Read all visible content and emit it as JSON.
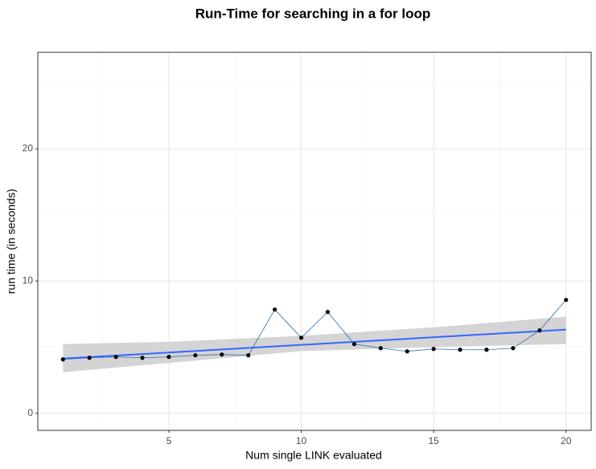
{
  "chart_data": {
    "type": "line",
    "title": "Run-Time for searching in a for loop",
    "x_label": "Num single LINK evaluated",
    "y_label": "run time (in seconds)",
    "x": [
      1,
      2,
      3,
      4,
      5,
      6,
      7,
      8,
      9,
      10,
      11,
      12,
      13,
      14,
      15,
      16,
      17,
      18,
      19,
      20
    ],
    "values": [
      4.07,
      4.19,
      4.26,
      4.19,
      4.26,
      4.38,
      4.44,
      4.38,
      7.84,
      5.71,
      7.66,
      5.23,
      4.92,
      4.68,
      4.86,
      4.8,
      4.8,
      4.92,
      6.26,
      8.57
    ],
    "line_color": "#2f6ea8",
    "point_color": "#000000",
    "smooth": {
      "x": [
        1,
        20
      ],
      "values": [
        4.13,
        6.32
      ],
      "color": "#3366ff"
    },
    "ribbon": {
      "x": [
        1,
        5,
        10,
        15,
        20
      ],
      "lower": [
        3.1,
        3.8,
        4.7,
        5.0,
        5.23
      ],
      "upper": [
        5.23,
        5.4,
        5.85,
        6.5,
        7.3
      ],
      "color": "#d4d4d4"
    },
    "xlim": [
      0.05,
      20.95
    ],
    "ylim": [
      -1.3,
      27.3
    ],
    "xticks": [
      5,
      10,
      15,
      20
    ],
    "yticks": [
      0,
      10,
      20
    ],
    "minor_xticks": [
      2.5,
      7.5,
      12.5,
      17.5
    ],
    "minor_yticks": [
      5,
      15,
      25
    ],
    "grid": true
  }
}
